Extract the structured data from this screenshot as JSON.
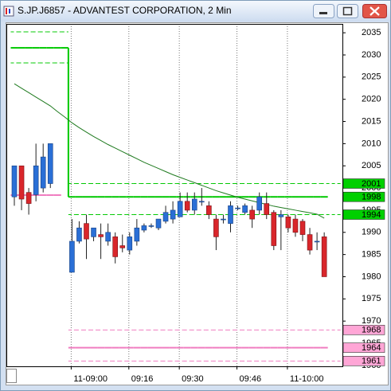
{
  "chart_data": {
    "type": "candlestick",
    "title": "S.JP.J6857 - ADVANTEST CORPORATION, 2 Min",
    "categories": [
      null,
      null,
      null,
      null,
      null,
      null,
      null,
      null,
      "11-09:00",
      null,
      null,
      null,
      null,
      null,
      null,
      null,
      "09:16",
      null,
      null,
      null,
      null,
      null,
      null,
      "09:30",
      null,
      null,
      null,
      null,
      null,
      null,
      null,
      "09:46",
      null,
      null,
      null,
      null,
      null,
      null,
      "11-10:00",
      null,
      null,
      null,
      null,
      null
    ],
    "open": [
      1998,
      2005,
      1999,
      1998.5,
      2000,
      2001,
      null,
      null,
      1981,
      1988,
      1992,
      1989,
      1989.5,
      1988,
      1989,
      1987,
      1986,
      1988,
      1990.5,
      1991.5,
      1991,
      1992.5,
      1993,
      1993.5,
      1997,
      1995,
      1997,
      1996,
      1993,
      1993,
      1992,
      1995.5,
      1994.5,
      1995,
      1995,
      1996.5,
      1994.5,
      1993.5,
      1993.5,
      1993,
      1992.5,
      1989.5,
      1988,
      1989
    ],
    "high": [
      2005,
      2005,
      2000,
      2010,
      2010,
      2010,
      null,
      null,
      1993,
      1992.5,
      1994,
      1991,
      1992,
      1992,
      1990,
      1989.5,
      1990,
      1993,
      1992,
      1992,
      1993,
      1996,
      1997,
      1999,
      1999,
      1999,
      2000,
      1997,
      1994,
      1994,
      1997,
      1996,
      1996.5,
      1996,
      1999,
      1999,
      1995,
      1995,
      1994,
      1994,
      1993,
      1991,
      1990,
      1990
    ],
    "low": [
      1996,
      1995,
      1994,
      1997,
      1999,
      2000,
      null,
      null,
      1981,
      1987.5,
      1984,
      1988,
      1984,
      1987,
      1983,
      1985.5,
      1985,
      1987,
      1990,
      1991,
      1990.5,
      1992,
      1992,
      1993.5,
      1994.5,
      1994,
      1996,
      1993,
      1986,
      1992,
      1990,
      1995,
      1994,
      1991,
      1994,
      1993,
      1986,
      1986,
      1990,
      1989,
      1988,
      1985,
      1986,
      1980
    ],
    "close": [
      2005,
      1997.5,
      1996.5,
      2005,
      2007,
      2010,
      null,
      null,
      1988,
      1991,
      1988.5,
      1991,
      1989,
      1990,
      1984.5,
      1986.5,
      1989,
      1991,
      1991.5,
      1991.5,
      1993,
      1994.5,
      1995,
      1997,
      1995,
      1997.5,
      1997,
      1994,
      1989,
      1993,
      1996,
      1995.5,
      1996,
      1993,
      1998,
      1994,
      1987,
      1994,
      1991,
      1990,
      1989.5,
      1986,
      1988,
      1980
    ],
    "up_color": "#2a6fd6",
    "down_color": "#d9262b",
    "lines": [
      {
        "color": "#00c800",
        "dash": true,
        "step": true,
        "values": [
          2035.2,
          2035.2,
          2035.2,
          2035.2,
          2035.2,
          2035.2,
          2035.2,
          2035.2,
          2001,
          2001,
          2001,
          2001,
          2001,
          2001,
          2001,
          2001,
          2001,
          2001,
          2001,
          2001,
          2001,
          2001,
          2001,
          2001,
          2001,
          2001,
          2001,
          2001,
          2001,
          2001,
          2001,
          2001,
          2001,
          2001,
          2001,
          2001,
          2001,
          2001,
          2001,
          2001,
          2001,
          2001,
          2001,
          2001
        ]
      },
      {
        "color": "#00c800",
        "dash": true,
        "step": true,
        "values": [
          2028.2,
          2028.2,
          2028.2,
          2028.2,
          2028.2,
          2028.2,
          2028.2,
          2028.2,
          1994,
          1994,
          1994,
          1994,
          1994,
          1994,
          1994,
          1994,
          1994,
          1994,
          1994,
          1994,
          1994,
          1994,
          1994,
          1994,
          1994,
          1994,
          1994,
          1994,
          1994,
          1994,
          1994,
          1994,
          1994,
          1994,
          1994,
          1994,
          1994,
          1994,
          1994,
          1994,
          1994,
          1994,
          1994,
          1994
        ]
      },
      {
        "color": "#00c800",
        "dash": false,
        "step": true,
        "values": [
          2031.6,
          2031.6,
          2031.6,
          2031.6,
          2031.6,
          2031.6,
          2031.6,
          2031.6,
          1998,
          1998,
          1998,
          1998,
          1998,
          1998,
          1998,
          1998,
          1998,
          1998,
          1998,
          1998,
          1998,
          1998,
          1998,
          1998,
          1998,
          1998,
          1998,
          1998,
          1998,
          1998,
          1998,
          1998,
          1998,
          1998,
          1998,
          1998,
          1998,
          1998,
          1998,
          1998,
          1998,
          1998,
          1998,
          1998
        ]
      },
      {
        "color": "#f07cc0",
        "dash": true,
        "step": true,
        "values": [
          null,
          null,
          null,
          null,
          null,
          null,
          null,
          null,
          1968,
          1968,
          1968,
          1968,
          1968,
          1968,
          1968,
          1968,
          1968,
          1968,
          1968,
          1968,
          1968,
          1968,
          1968,
          1968,
          1968,
          1968,
          1968,
          1968,
          1968,
          1968,
          1968,
          1968,
          1968,
          1968,
          1968,
          1968,
          1968,
          1968,
          1968,
          1968,
          1968,
          1968,
          1968,
          1968
        ]
      },
      {
        "color": "#f07cc0",
        "dash": true,
        "step": true,
        "values": [
          null,
          null,
          null,
          null,
          null,
          null,
          null,
          null,
          1961,
          1961,
          1961,
          1961,
          1961,
          1961,
          1961,
          1961,
          1961,
          1961,
          1961,
          1961,
          1961,
          1961,
          1961,
          1961,
          1961,
          1961,
          1961,
          1961,
          1961,
          1961,
          1961,
          1961,
          1961,
          1961,
          1961,
          1961,
          1961,
          1961,
          1961,
          1961,
          1961,
          1961,
          1961,
          1961
        ]
      },
      {
        "color": "#f07cc0",
        "dash": false,
        "step": true,
        "values": [
          1998.4,
          1998.4,
          1998.4,
          1998.4,
          1998.4,
          1998.4,
          1998.4,
          null,
          1964,
          1964,
          1964,
          1964,
          1964,
          1964,
          1964,
          1964,
          1964,
          1964,
          1964,
          1964,
          1964,
          1964,
          1964,
          1964,
          1964,
          1964,
          1964,
          1964,
          1964,
          1964,
          1964,
          1964,
          1964,
          1964,
          1964,
          1964,
          1964,
          1964,
          1964,
          1964,
          1964,
          1964,
          1964,
          1964
        ]
      },
      {
        "color": "#1f7a1f",
        "dash": false,
        "step": false,
        "values": [
          2023.5,
          2022.5,
          2021.5,
          2020.5,
          2019.5,
          2018.5,
          2017.2,
          2016,
          2014.7,
          2013.6,
          2012.6,
          2011.6,
          2010.7,
          2009.8,
          2009,
          2008.2,
          2007.4,
          2006.6,
          2005.8,
          2005.1,
          2004.4,
          2003.7,
          2003,
          2002.4,
          2001.8,
          2001.2,
          2000.6,
          2000,
          1999.4,
          1998.9,
          1998.4,
          1997.9,
          1997.5,
          1997.1,
          1996.7,
          1996.3,
          1995.9,
          1995.6,
          1995.3,
          1995,
          1994.7,
          1994.4,
          1994.1,
          1993.2
        ]
      }
    ],
    "markers": [
      {
        "value": 2001,
        "color": "#00d000"
      },
      {
        "value": 1998,
        "color": "#00d000"
      },
      {
        "value": 1994,
        "color": "#00d000"
      },
      {
        "value": 1968,
        "color": "#ffa6d6"
      },
      {
        "value": 1964,
        "color": "#ffa6d6"
      },
      {
        "value": 1961,
        "color": "#ffa6d6"
      }
    ],
    "ylim": [
      1959.8,
      2037
    ],
    "yticks": [
      1960,
      1965,
      1970,
      1975,
      1980,
      1985,
      1990,
      1995,
      2000,
      2005,
      2010,
      2015,
      2020,
      2025,
      2030,
      2035
    ],
    "grid": "x"
  }
}
